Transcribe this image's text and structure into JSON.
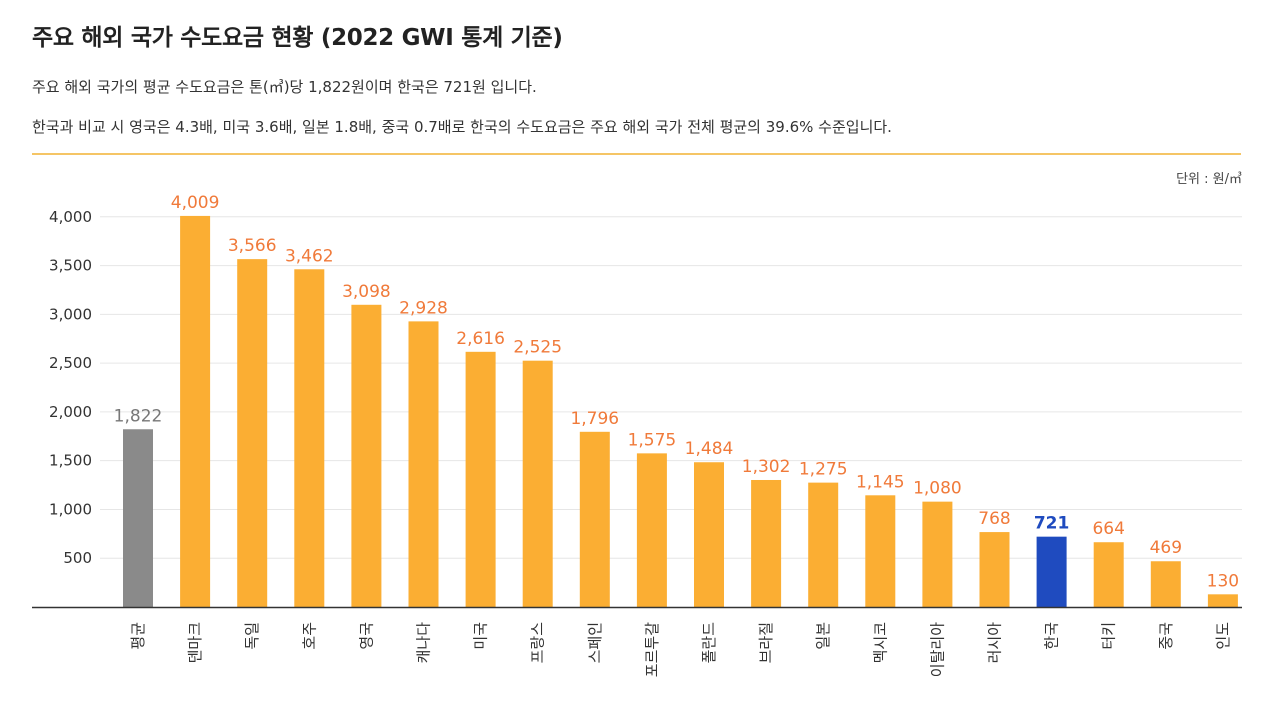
{
  "title": "주요 해외 국가 수도요금 현황 (2022 GWI 통계 기준)",
  "description": [
    "주요 해외 국가의 평균 수도요금은 톤(㎥)당 1,822원이며 한국은 721원 입니다.",
    "한국과 비교 시 영국은 4.3배, 미국 3.6배, 일본 1.8배, 중국 0.7배로 한국의 수도요금은 주요 해외 국가 전체 평균의 39.6% 수준입니다."
  ],
  "unit": "단위 : 원/㎥",
  "colors": {
    "default_bar": "#fbae33",
    "average_bar": "#8a8a8a",
    "korea_bar": "#1f4bbf",
    "default_label": "#f07a3a",
    "average_label": "#777777",
    "korea_label": "#1f4bbf",
    "divider": "#f5c565"
  },
  "chart_data": {
    "type": "bar",
    "title": "주요 해외 국가 수도요금 현황 (2022 GWI 통계 기준)",
    "xlabel": "",
    "ylabel": "",
    "ylim": [
      0,
      4300
    ],
    "yticks": [
      500,
      1000,
      1500,
      2000,
      2500,
      3000,
      3500,
      4000
    ],
    "ytick_labels": [
      "500",
      "1,000",
      "1,500",
      "2,000",
      "2,500",
      "3,000",
      "3,500",
      "4,000"
    ],
    "grid": true,
    "categories": [
      "평균",
      "덴마크",
      "독일",
      "호주",
      "영국",
      "캐나다",
      "미국",
      "프랑스",
      "스페인",
      "포르투갈",
      "폴란드",
      "브라질",
      "일본",
      "멕시코",
      "이탈리아",
      "러시아",
      "한국",
      "터키",
      "중국",
      "인도"
    ],
    "values": [
      1822,
      4009,
      3566,
      3462,
      3098,
      2928,
      2616,
      2525,
      1796,
      1575,
      1484,
      1302,
      1275,
      1145,
      1080,
      768,
      721,
      664,
      469,
      130
    ],
    "value_labels": [
      "1,822",
      "4,009",
      "3,566",
      "3,462",
      "3,098",
      "2,928",
      "2,616",
      "2,525",
      "1,796",
      "1,575",
      "1,484",
      "1,302",
      "1,275",
      "1,145",
      "1,080",
      "768",
      "721",
      "664",
      "469",
      "130"
    ],
    "highlight": {
      "평균": "average",
      "한국": "korea"
    }
  }
}
